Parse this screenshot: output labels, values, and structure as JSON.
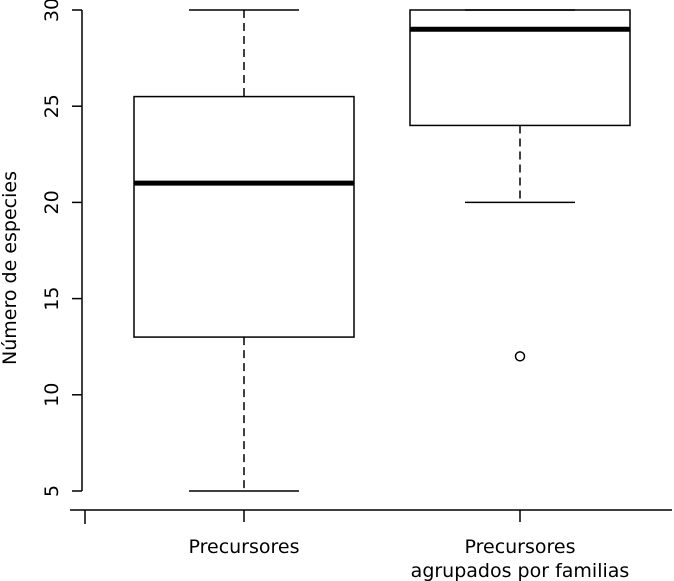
{
  "chart_data": {
    "type": "boxplot",
    "title": "",
    "xlabel": "",
    "ylabel": "Número de especies",
    "ylim": [
      5,
      30
    ],
    "yticks": [
      5,
      10,
      15,
      20,
      25,
      30
    ],
    "grid": false,
    "categories": [
      [
        "Precursores"
      ],
      [
        "Precursores",
        "agrupados por familias"
      ]
    ],
    "boxes": [
      {
        "whisker_low": 5,
        "q1": 13,
        "median": 21,
        "q3": 25.5,
        "whisker_high": 30,
        "outliers": []
      },
      {
        "whisker_low": 20,
        "q1": 24,
        "median": 29,
        "q3": 30,
        "whisker_high": 30,
        "outliers": [
          12
        ]
      }
    ]
  }
}
